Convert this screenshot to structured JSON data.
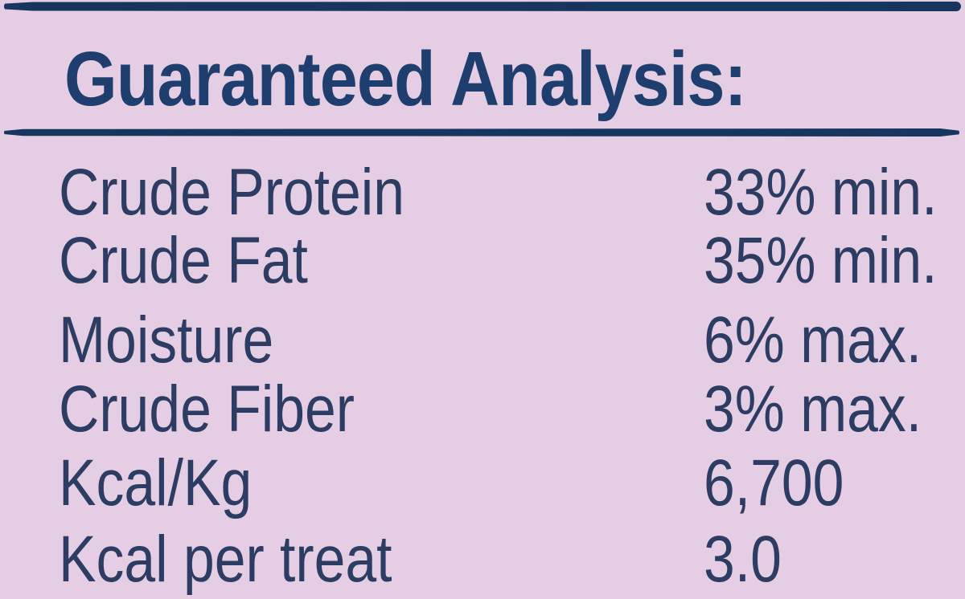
{
  "panel": {
    "title": "Guaranteed Analysis:"
  },
  "rows": [
    {
      "label": "Crude Protein",
      "value": "33% min."
    },
    {
      "label": "Crude Fat",
      "value": "35% min."
    },
    {
      "label": "Moisture",
      "value": "6% max."
    },
    {
      "label": "Crude Fiber",
      "value": "3% max."
    },
    {
      "label": "Kcal/Kg",
      "value": "6,700"
    },
    {
      "label": "Kcal per treat",
      "value": "3.0"
    }
  ],
  "colors": {
    "background": "#e5cee3",
    "title_navy": "#1d3e6e",
    "body_navy": "#2c3c62",
    "rule_navy": "#16355f"
  }
}
